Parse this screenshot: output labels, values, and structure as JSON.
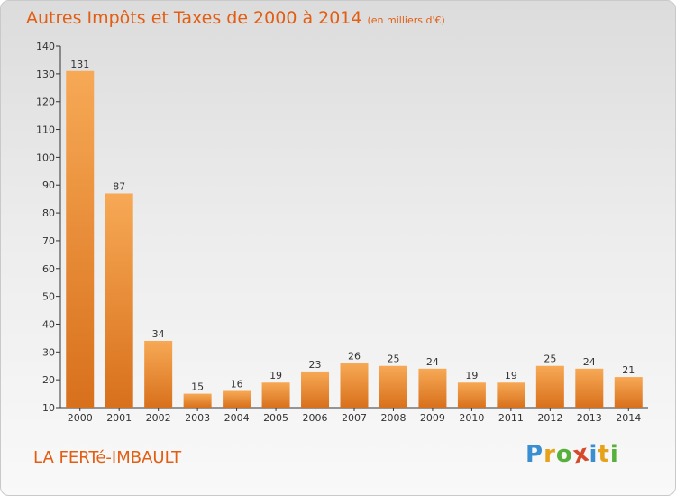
{
  "title": {
    "main": "Autres Impôts et Taxes de 2000 à 2014",
    "sub": "(en milliers d'€)"
  },
  "location": "LA FERTé-IMBAULT",
  "logo": {
    "letters": [
      "P",
      "r",
      "o",
      "x",
      "i",
      "t",
      "i"
    ],
    "colors": [
      "#3a8fd3",
      "#e7a21b",
      "#58b03c",
      "#d64a2c",
      "#3a8fd3",
      "#e7a21b",
      "#58b03c"
    ]
  },
  "colors": {
    "bar_light": "#f7a955",
    "bar_dark": "#d8701c",
    "accent": "#e35d12"
  },
  "chart_data": {
    "type": "bar",
    "title": "Autres Impôts et Taxes de 2000 à 2014",
    "subtitle": "(en milliers d'€)",
    "categories": [
      "2000",
      "2001",
      "2002",
      "2003",
      "2004",
      "2005",
      "2006",
      "2007",
      "2008",
      "2009",
      "2010",
      "2011",
      "2012",
      "2013",
      "2014"
    ],
    "values": [
      131,
      87,
      34,
      15,
      16,
      19,
      23,
      26,
      25,
      24,
      19,
      19,
      25,
      24,
      21
    ],
    "ylim": [
      10,
      140
    ],
    "yticks": [
      10,
      20,
      30,
      40,
      50,
      60,
      70,
      80,
      90,
      100,
      110,
      120,
      130,
      140
    ],
    "xlabel": "",
    "ylabel": "",
    "grid": false,
    "data_labels": true
  }
}
